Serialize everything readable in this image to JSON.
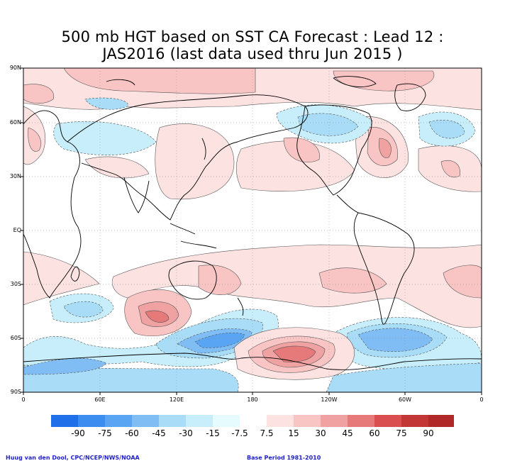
{
  "title": {
    "line1": "500 mb HGT based on SST CA Forecast : Lead 12 :",
    "line2": "JAS2016 (last data used thru Jun 2015 )"
  },
  "axes": {
    "lat_labels": [
      "90N",
      "60N",
      "30N",
      "EQ",
      "30S",
      "60S",
      "90S"
    ],
    "lon_labels": [
      "0",
      "60E",
      "120E",
      "180",
      "120W",
      "60W",
      "0"
    ]
  },
  "colorbar": {
    "labels": [
      "-90",
      "-75",
      "-60",
      "-45",
      "-30",
      "-15",
      "-7.5",
      "7.5",
      "15",
      "30",
      "45",
      "60",
      "75",
      "90"
    ],
    "colors": [
      "#1f6fe8",
      "#3b8ef0",
      "#5aa5f3",
      "#80bdf5",
      "#a9dcf6",
      "#c7eefa",
      "#e6fbfe",
      "#ffffff",
      "#fde2e2",
      "#f9c4c4",
      "#f0a2a2",
      "#e67a7a",
      "#d94e4e",
      "#c23636",
      "#b02828"
    ]
  },
  "credits": {
    "left": "Huug van den Dool, CPC/NCEP/NWS/NOAA",
    "right": "Base Period 1981-2010"
  }
}
